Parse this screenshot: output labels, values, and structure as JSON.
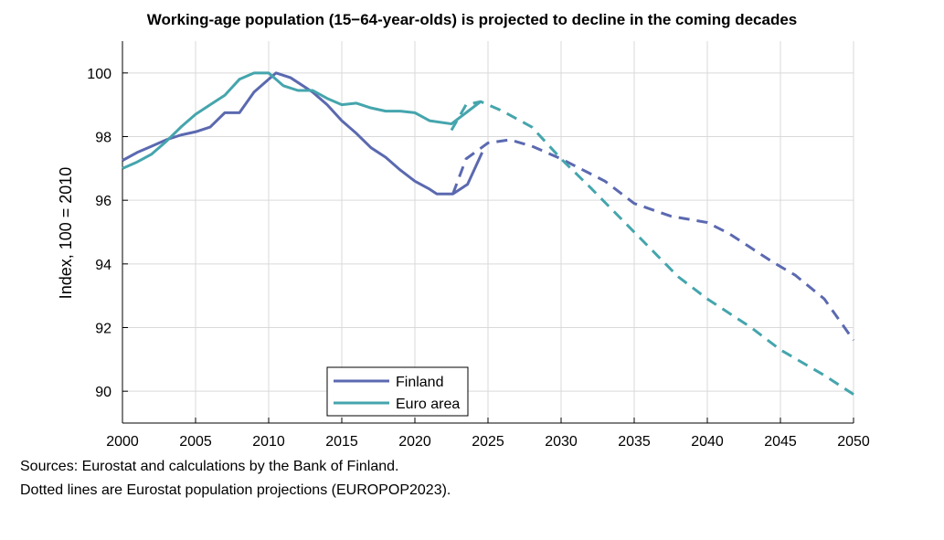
{
  "chart_data": {
    "type": "line",
    "title": "Working-age population (15−64-year-olds) is projected to decline in the coming decades",
    "xlabel": "",
    "ylabel": "Index, 100 = 2010",
    "xlim": [
      2000,
      2050
    ],
    "ylim": [
      89,
      101
    ],
    "xticks": [
      2000,
      2005,
      2010,
      2015,
      2020,
      2025,
      2030,
      2035,
      2040,
      2045,
      2050
    ],
    "yticks": [
      90,
      92,
      94,
      96,
      98,
      100
    ],
    "grid": true,
    "legend": "bottom-center",
    "series": [
      {
        "name": "Finland",
        "color": "#5b69b0",
        "actual": {
          "x": [
            2000,
            2001,
            2002,
            2003,
            2004,
            2005,
            2006,
            2007,
            2008,
            2009,
            2010,
            2010.5,
            2011.5,
            2013,
            2014,
            2015,
            2016,
            2017,
            2018,
            2019,
            2020,
            2021,
            2021.5,
            2022.6,
            2023.6,
            2024.6
          ],
          "y": [
            97.25,
            97.5,
            97.7,
            97.9,
            98.05,
            98.15,
            98.3,
            98.75,
            98.75,
            99.4,
            99.8,
            100,
            99.85,
            99.4,
            99.0,
            98.5,
            98.1,
            97.65,
            97.35,
            96.95,
            96.6,
            96.35,
            96.2,
            96.2,
            96.5,
            97.5
          ]
        },
        "projection": {
          "x": [
            2022.6,
            2023.5,
            2025,
            2026.5,
            2028,
            2030,
            2031.5,
            2033,
            2035,
            2037.5,
            2040,
            2041.5,
            2043,
            2044.5,
            2046,
            2048,
            2050
          ],
          "y": [
            96.2,
            97.3,
            97.8,
            97.9,
            97.7,
            97.3,
            96.95,
            96.6,
            95.9,
            95.5,
            95.3,
            94.95,
            94.5,
            94.05,
            93.65,
            92.9,
            91.6
          ]
        }
      },
      {
        "name": "Euro area",
        "color": "#45a5ad",
        "actual": {
          "x": [
            2000,
            2001,
            2002,
            2003,
            2004,
            2005,
            2006,
            2007,
            2008,
            2009,
            2010,
            2011,
            2012,
            2013,
            2014,
            2015,
            2016,
            2017,
            2018,
            2019,
            2020,
            2021,
            2022.5,
            2023.5,
            2024.5
          ],
          "y": [
            97.0,
            97.2,
            97.45,
            97.85,
            98.3,
            98.7,
            99.0,
            99.3,
            99.8,
            100.0,
            100.0,
            99.6,
            99.45,
            99.45,
            99.2,
            99.0,
            99.05,
            98.9,
            98.8,
            98.8,
            98.75,
            98.5,
            98.4,
            98.75,
            99.1
          ]
        },
        "projection": {
          "x": [
            2022.5,
            2023.5,
            2024.5,
            2026,
            2028,
            2030,
            2032,
            2035,
            2038,
            2040,
            2043,
            2045,
            2048,
            2050
          ],
          "y": [
            98.2,
            99.0,
            99.1,
            98.8,
            98.3,
            97.3,
            96.4,
            95.0,
            93.6,
            92.9,
            92.0,
            91.3,
            90.5,
            89.9
          ]
        }
      }
    ]
  },
  "sources": "Sources: Eurostat and calculations by the Bank of Finland.",
  "note": "Dotted lines are Eurostat population projections (EUROPOP2023)."
}
